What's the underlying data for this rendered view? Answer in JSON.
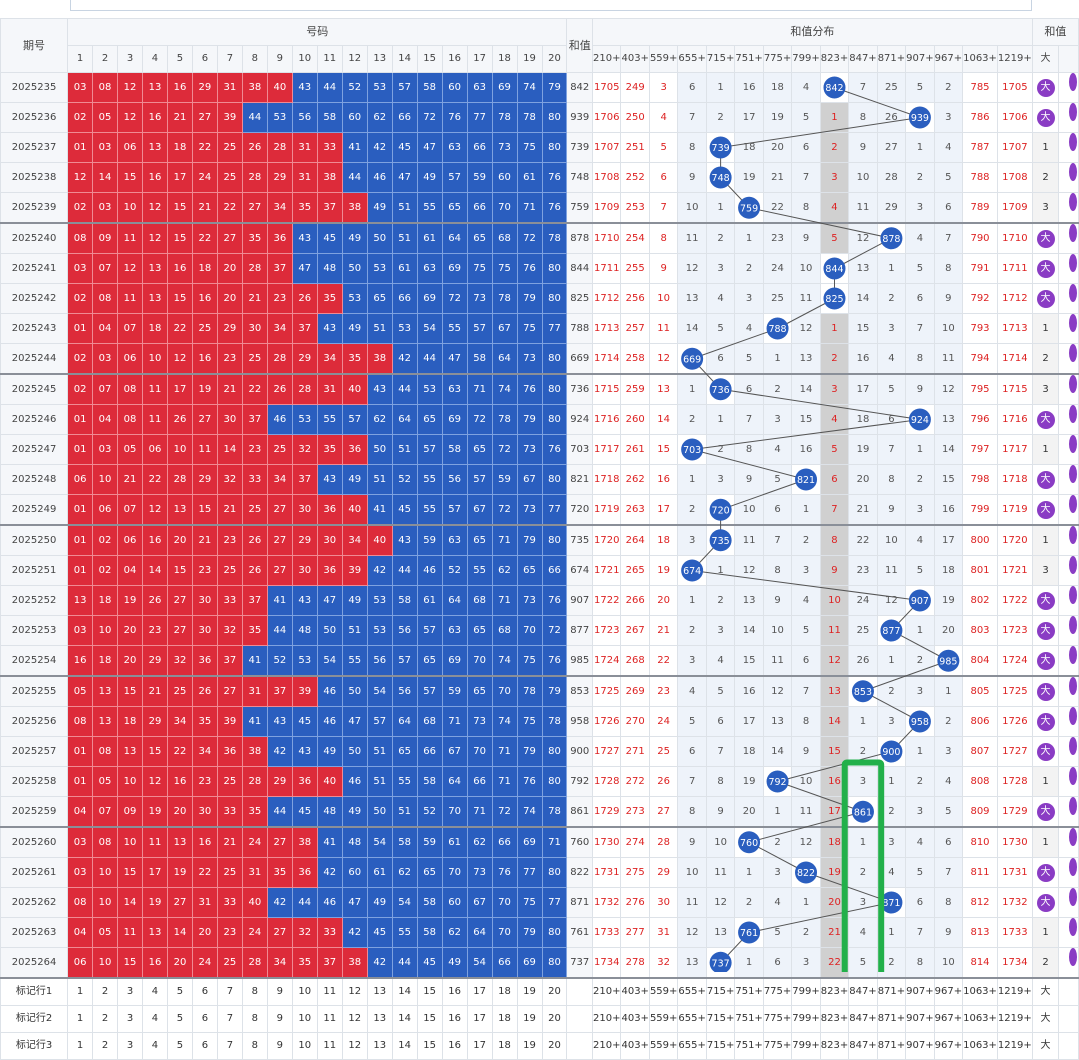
{
  "header": {
    "period_label": "期号",
    "numbers_label": "号码",
    "sum_label": "和值",
    "dist_label": "和值分布",
    "right_label": "和值"
  },
  "number_columns": [
    "1",
    "2",
    "3",
    "4",
    "5",
    "6",
    "7",
    "8",
    "9",
    "10",
    "11",
    "12",
    "13",
    "14",
    "15",
    "16",
    "17",
    "18",
    "19",
    "20"
  ],
  "dist_columns": [
    "210+",
    "403+",
    "559+",
    "655+",
    "715+",
    "751+",
    "775+",
    "799+",
    "823+",
    "847+",
    "871+",
    "907+",
    "967+",
    "1063+",
    "1219+"
  ],
  "big_label": "大",
  "rows": [
    {
      "period": "2025235",
      "nums": [
        "03",
        "08",
        "12",
        "13",
        "16",
        "29",
        "31",
        "38",
        "40",
        "43",
        "44",
        "52",
        "53",
        "57",
        "58",
        "60",
        "63",
        "69",
        "74",
        "79"
      ],
      "red": 9,
      "sum": "842",
      "dist": [
        "1705",
        "249",
        "3",
        "6",
        "1",
        "16",
        "18",
        "4",
        "842",
        "7",
        "25",
        "5",
        "2",
        "785",
        "1705"
      ],
      "tail": "大"
    },
    {
      "period": "2025236",
      "nums": [
        "02",
        "05",
        "12",
        "16",
        "21",
        "27",
        "39",
        "44",
        "53",
        "56",
        "58",
        "60",
        "62",
        "66",
        "72",
        "76",
        "77",
        "78",
        "78",
        "80"
      ],
      "red": 7,
      "sum": "939",
      "dist": [
        "1706",
        "250",
        "4",
        "7",
        "2",
        "17",
        "19",
        "5",
        "1",
        "8",
        "26",
        "939",
        "3",
        "786",
        "1706"
      ],
      "tail": "大"
    },
    {
      "period": "2025237",
      "nums": [
        "01",
        "03",
        "06",
        "13",
        "18",
        "22",
        "25",
        "26",
        "28",
        "31",
        "33",
        "41",
        "42",
        "45",
        "47",
        "63",
        "66",
        "73",
        "75",
        "80"
      ],
      "red": 11,
      "sum": "739",
      "dist": [
        "1707",
        "251",
        "5",
        "8",
        "739",
        "18",
        "20",
        "6",
        "2",
        "9",
        "27",
        "1",
        "4",
        "787",
        "1707"
      ],
      "tail": "1"
    },
    {
      "period": "2025238",
      "nums": [
        "12",
        "14",
        "15",
        "16",
        "17",
        "24",
        "25",
        "28",
        "29",
        "31",
        "38",
        "44",
        "46",
        "47",
        "49",
        "57",
        "59",
        "60",
        "61",
        "76"
      ],
      "red": 11,
      "sum": "748",
      "dist": [
        "1708",
        "252",
        "6",
        "9",
        "748",
        "19",
        "21",
        "7",
        "3",
        "10",
        "28",
        "2",
        "5",
        "788",
        "1708"
      ],
      "tail": "2"
    },
    {
      "period": "2025239",
      "nums": [
        "02",
        "03",
        "10",
        "12",
        "15",
        "21",
        "22",
        "27",
        "34",
        "35",
        "37",
        "38",
        "49",
        "51",
        "55",
        "65",
        "66",
        "70",
        "71",
        "76"
      ],
      "red": 12,
      "sum": "759",
      "dist": [
        "1709",
        "253",
        "7",
        "10",
        "1",
        "759",
        "22",
        "8",
        "4",
        "11",
        "29",
        "3",
        "6",
        "789",
        "1709"
      ],
      "tail": "3"
    },
    {
      "period": "2025240",
      "nums": [
        "08",
        "09",
        "11",
        "12",
        "15",
        "22",
        "27",
        "35",
        "36",
        "43",
        "45",
        "49",
        "50",
        "51",
        "61",
        "64",
        "65",
        "68",
        "72",
        "78"
      ],
      "red": 9,
      "sum": "878",
      "dist": [
        "1710",
        "254",
        "8",
        "11",
        "2",
        "1",
        "23",
        "9",
        "5",
        "12",
        "878",
        "4",
        "7",
        "790",
        "1710"
      ],
      "tail": "大"
    },
    {
      "period": "2025241",
      "nums": [
        "03",
        "07",
        "12",
        "13",
        "16",
        "18",
        "20",
        "28",
        "37",
        "47",
        "48",
        "50",
        "53",
        "61",
        "63",
        "69",
        "75",
        "75",
        "76",
        "80"
      ],
      "red": 9,
      "sum": "844",
      "dist": [
        "1711",
        "255",
        "9",
        "12",
        "3",
        "2",
        "24",
        "10",
        "844",
        "13",
        "1",
        "5",
        "8",
        "791",
        "1711"
      ],
      "tail": "大"
    },
    {
      "period": "2025242",
      "nums": [
        "02",
        "08",
        "11",
        "13",
        "15",
        "16",
        "20",
        "21",
        "23",
        "26",
        "35",
        "53",
        "65",
        "66",
        "69",
        "72",
        "73",
        "78",
        "79",
        "80"
      ],
      "red": 11,
      "sum": "825",
      "dist": [
        "1712",
        "256",
        "10",
        "13",
        "4",
        "3",
        "25",
        "11",
        "825",
        "14",
        "2",
        "6",
        "9",
        "792",
        "1712"
      ],
      "tail": "大"
    },
    {
      "period": "2025243",
      "nums": [
        "01",
        "04",
        "07",
        "18",
        "22",
        "25",
        "29",
        "30",
        "34",
        "37",
        "43",
        "49",
        "51",
        "53",
        "54",
        "55",
        "57",
        "67",
        "75",
        "77"
      ],
      "red": 10,
      "sum": "788",
      "dist": [
        "1713",
        "257",
        "11",
        "14",
        "5",
        "4",
        "788",
        "12",
        "1",
        "15",
        "3",
        "7",
        "10",
        "793",
        "1713"
      ],
      "tail": "1"
    },
    {
      "period": "2025244",
      "nums": [
        "02",
        "03",
        "06",
        "10",
        "12",
        "16",
        "23",
        "25",
        "28",
        "29",
        "34",
        "35",
        "38",
        "42",
        "44",
        "47",
        "58",
        "64",
        "73",
        "80"
      ],
      "red": 13,
      "sum": "669",
      "dist": [
        "1714",
        "258",
        "12",
        "669",
        "6",
        "5",
        "1",
        "13",
        "2",
        "16",
        "4",
        "8",
        "11",
        "794",
        "1714"
      ],
      "tail": "2"
    },
    {
      "period": "2025245",
      "nums": [
        "02",
        "07",
        "08",
        "11",
        "17",
        "19",
        "21",
        "22",
        "26",
        "28",
        "31",
        "40",
        "43",
        "44",
        "53",
        "63",
        "71",
        "74",
        "76",
        "80"
      ],
      "red": 12,
      "sum": "736",
      "dist": [
        "1715",
        "259",
        "13",
        "1",
        "736",
        "6",
        "2",
        "14",
        "3",
        "17",
        "5",
        "9",
        "12",
        "795",
        "1715"
      ],
      "tail": "3"
    },
    {
      "period": "2025246",
      "nums": [
        "01",
        "04",
        "08",
        "11",
        "26",
        "27",
        "30",
        "37",
        "46",
        "53",
        "55",
        "57",
        "62",
        "64",
        "65",
        "69",
        "72",
        "78",
        "79",
        "80"
      ],
      "red": 8,
      "sum": "924",
      "dist": [
        "1716",
        "260",
        "14",
        "2",
        "1",
        "7",
        "3",
        "15",
        "4",
        "18",
        "6",
        "924",
        "13",
        "796",
        "1716"
      ],
      "tail": "大"
    },
    {
      "period": "2025247",
      "nums": [
        "01",
        "03",
        "05",
        "06",
        "10",
        "11",
        "14",
        "23",
        "25",
        "32",
        "35",
        "36",
        "50",
        "51",
        "57",
        "58",
        "65",
        "72",
        "73",
        "76"
      ],
      "red": 12,
      "sum": "703",
      "dist": [
        "1717",
        "261",
        "15",
        "703",
        "2",
        "8",
        "4",
        "16",
        "5",
        "19",
        "7",
        "1",
        "14",
        "797",
        "1717"
      ],
      "tail": "1"
    },
    {
      "period": "2025248",
      "nums": [
        "06",
        "10",
        "21",
        "22",
        "28",
        "29",
        "32",
        "33",
        "34",
        "37",
        "43",
        "49",
        "51",
        "52",
        "55",
        "56",
        "57",
        "59",
        "67",
        "80"
      ],
      "red": 10,
      "sum": "821",
      "dist": [
        "1718",
        "262",
        "16",
        "1",
        "3",
        "9",
        "5",
        "821",
        "6",
        "20",
        "8",
        "2",
        "15",
        "798",
        "1718"
      ],
      "tail": "大"
    },
    {
      "period": "2025249",
      "nums": [
        "01",
        "06",
        "07",
        "12",
        "13",
        "15",
        "21",
        "25",
        "27",
        "30",
        "36",
        "40",
        "41",
        "45",
        "55",
        "57",
        "67",
        "72",
        "73",
        "77"
      ],
      "red": 12,
      "sum": "720",
      "dist": [
        "1719",
        "263",
        "17",
        "2",
        "720",
        "10",
        "6",
        "1",
        "7",
        "21",
        "9",
        "3",
        "16",
        "799",
        "1719"
      ],
      "tail": "大"
    },
    {
      "period": "2025250",
      "nums": [
        "01",
        "02",
        "06",
        "16",
        "20",
        "21",
        "23",
        "26",
        "27",
        "29",
        "30",
        "34",
        "40",
        "43",
        "59",
        "63",
        "65",
        "71",
        "79",
        "80"
      ],
      "red": 13,
      "sum": "735",
      "dist": [
        "1720",
        "264",
        "18",
        "3",
        "735",
        "11",
        "7",
        "2",
        "8",
        "22",
        "10",
        "4",
        "17",
        "800",
        "1720"
      ],
      "tail": "1"
    },
    {
      "period": "2025251",
      "nums": [
        "01",
        "02",
        "04",
        "14",
        "15",
        "23",
        "25",
        "26",
        "27",
        "30",
        "36",
        "39",
        "42",
        "44",
        "46",
        "52",
        "55",
        "62",
        "65",
        "66"
      ],
      "red": 12,
      "sum": "674",
      "dist": [
        "1721",
        "265",
        "19",
        "674",
        "1",
        "12",
        "8",
        "3",
        "9",
        "23",
        "11",
        "5",
        "18",
        "801",
        "1721"
      ],
      "tail": "3"
    },
    {
      "period": "2025252",
      "nums": [
        "13",
        "18",
        "19",
        "26",
        "27",
        "30",
        "33",
        "37",
        "41",
        "43",
        "47",
        "49",
        "53",
        "58",
        "61",
        "64",
        "68",
        "71",
        "73",
        "76"
      ],
      "red": 8,
      "sum": "907",
      "dist": [
        "1722",
        "266",
        "20",
        "1",
        "2",
        "13",
        "9",
        "4",
        "10",
        "24",
        "12",
        "907",
        "19",
        "802",
        "1722"
      ],
      "tail": "大"
    },
    {
      "period": "2025253",
      "nums": [
        "03",
        "10",
        "20",
        "23",
        "27",
        "30",
        "32",
        "35",
        "44",
        "48",
        "50",
        "51",
        "53",
        "56",
        "57",
        "63",
        "65",
        "68",
        "70",
        "72"
      ],
      "red": 8,
      "sum": "877",
      "dist": [
        "1723",
        "267",
        "21",
        "2",
        "3",
        "14",
        "10",
        "5",
        "11",
        "25",
        "877",
        "1",
        "20",
        "803",
        "1723"
      ],
      "tail": "大"
    },
    {
      "period": "2025254",
      "nums": [
        "16",
        "18",
        "20",
        "29",
        "32",
        "36",
        "37",
        "41",
        "52",
        "53",
        "54",
        "55",
        "56",
        "57",
        "65",
        "69",
        "70",
        "74",
        "75",
        "76"
      ],
      "red": 7,
      "sum": "985",
      "dist": [
        "1724",
        "268",
        "22",
        "3",
        "4",
        "15",
        "11",
        "6",
        "12",
        "26",
        "1",
        "2",
        "985",
        "804",
        "1724"
      ],
      "tail": "大"
    },
    {
      "period": "2025255",
      "nums": [
        "05",
        "13",
        "15",
        "21",
        "25",
        "26",
        "27",
        "31",
        "37",
        "39",
        "46",
        "50",
        "54",
        "56",
        "57",
        "59",
        "65",
        "70",
        "78",
        "79"
      ],
      "red": 10,
      "sum": "853",
      "dist": [
        "1725",
        "269",
        "23",
        "4",
        "5",
        "16",
        "12",
        "7",
        "13",
        "853",
        "2",
        "3",
        "1",
        "805",
        "1725"
      ],
      "tail": "大"
    },
    {
      "period": "2025256",
      "nums": [
        "08",
        "13",
        "18",
        "29",
        "34",
        "35",
        "39",
        "41",
        "43",
        "45",
        "46",
        "47",
        "57",
        "64",
        "68",
        "71",
        "73",
        "74",
        "75",
        "78"
      ],
      "red": 7,
      "sum": "958",
      "dist": [
        "1726",
        "270",
        "24",
        "5",
        "6",
        "17",
        "13",
        "8",
        "14",
        "1",
        "3",
        "958",
        "2",
        "806",
        "1726"
      ],
      "tail": "大"
    },
    {
      "period": "2025257",
      "nums": [
        "01",
        "08",
        "13",
        "15",
        "22",
        "34",
        "36",
        "38",
        "42",
        "43",
        "49",
        "50",
        "51",
        "65",
        "66",
        "67",
        "70",
        "71",
        "79",
        "80"
      ],
      "red": 8,
      "sum": "900",
      "dist": [
        "1727",
        "271",
        "25",
        "6",
        "7",
        "18",
        "14",
        "9",
        "15",
        "2",
        "900",
        "1",
        "3",
        "807",
        "1727"
      ],
      "tail": "大"
    },
    {
      "period": "2025258",
      "nums": [
        "01",
        "05",
        "10",
        "12",
        "16",
        "23",
        "25",
        "28",
        "29",
        "36",
        "40",
        "46",
        "51",
        "55",
        "58",
        "64",
        "66",
        "71",
        "76",
        "80"
      ],
      "red": 11,
      "sum": "792",
      "dist": [
        "1728",
        "272",
        "26",
        "7",
        "8",
        "19",
        "792",
        "10",
        "16",
        "3",
        "1",
        "2",
        "4",
        "808",
        "1728"
      ],
      "tail": "1"
    },
    {
      "period": "2025259",
      "nums": [
        "04",
        "07",
        "09",
        "19",
        "20",
        "30",
        "33",
        "35",
        "44",
        "45",
        "48",
        "49",
        "50",
        "51",
        "52",
        "70",
        "71",
        "72",
        "74",
        "78"
      ],
      "red": 8,
      "sum": "861",
      "dist": [
        "1729",
        "273",
        "27",
        "8",
        "9",
        "20",
        "1",
        "11",
        "17",
        "861",
        "2",
        "3",
        "5",
        "809",
        "1729"
      ],
      "tail": "大"
    },
    {
      "period": "2025260",
      "nums": [
        "03",
        "08",
        "10",
        "11",
        "13",
        "16",
        "21",
        "24",
        "27",
        "38",
        "41",
        "48",
        "54",
        "58",
        "59",
        "61",
        "62",
        "66",
        "69",
        "71"
      ],
      "red": 10,
      "sum": "760",
      "dist": [
        "1730",
        "274",
        "28",
        "9",
        "10",
        "760",
        "2",
        "12",
        "18",
        "1",
        "3",
        "4",
        "6",
        "810",
        "1730"
      ],
      "tail": "1"
    },
    {
      "period": "2025261",
      "nums": [
        "03",
        "10",
        "15",
        "17",
        "19",
        "22",
        "25",
        "31",
        "35",
        "36",
        "42",
        "60",
        "61",
        "62",
        "65",
        "70",
        "73",
        "76",
        "77",
        "80"
      ],
      "red": 10,
      "sum": "822",
      "dist": [
        "1731",
        "275",
        "29",
        "10",
        "11",
        "1",
        "3",
        "822",
        "19",
        "2",
        "4",
        "5",
        "7",
        "811",
        "1731"
      ],
      "tail": "大"
    },
    {
      "period": "2025262",
      "nums": [
        "08",
        "10",
        "14",
        "19",
        "27",
        "31",
        "33",
        "40",
        "42",
        "44",
        "46",
        "47",
        "49",
        "54",
        "58",
        "60",
        "67",
        "70",
        "75",
        "77"
      ],
      "red": 8,
      "sum": "871",
      "dist": [
        "1732",
        "276",
        "30",
        "11",
        "12",
        "2",
        "4",
        "1",
        "20",
        "3",
        "871",
        "6",
        "8",
        "812",
        "1732"
      ],
      "tail": "大"
    },
    {
      "period": "2025263",
      "nums": [
        "04",
        "05",
        "11",
        "13",
        "14",
        "20",
        "23",
        "24",
        "27",
        "32",
        "33",
        "42",
        "45",
        "55",
        "58",
        "62",
        "64",
        "70",
        "79",
        "80"
      ],
      "red": 11,
      "sum": "761",
      "dist": [
        "1733",
        "277",
        "31",
        "12",
        "13",
        "761",
        "5",
        "2",
        "21",
        "4",
        "1",
        "7",
        "9",
        "813",
        "1733"
      ],
      "tail": "1"
    },
    {
      "period": "2025264",
      "nums": [
        "06",
        "10",
        "15",
        "16",
        "20",
        "24",
        "25",
        "28",
        "34",
        "35",
        "37",
        "38",
        "42",
        "44",
        "45",
        "49",
        "54",
        "66",
        "69",
        "80"
      ],
      "red": 12,
      "sum": "737",
      "dist": [
        "1734",
        "278",
        "32",
        "13",
        "737",
        "1",
        "6",
        "3",
        "22",
        "5",
        "2",
        "8",
        "10",
        "814",
        "1734"
      ],
      "tail": "2"
    }
  ],
  "mark_rows": [
    {
      "label": "标记行1"
    },
    {
      "label": "标记行2"
    },
    {
      "label": "标记行3"
    }
  ]
}
